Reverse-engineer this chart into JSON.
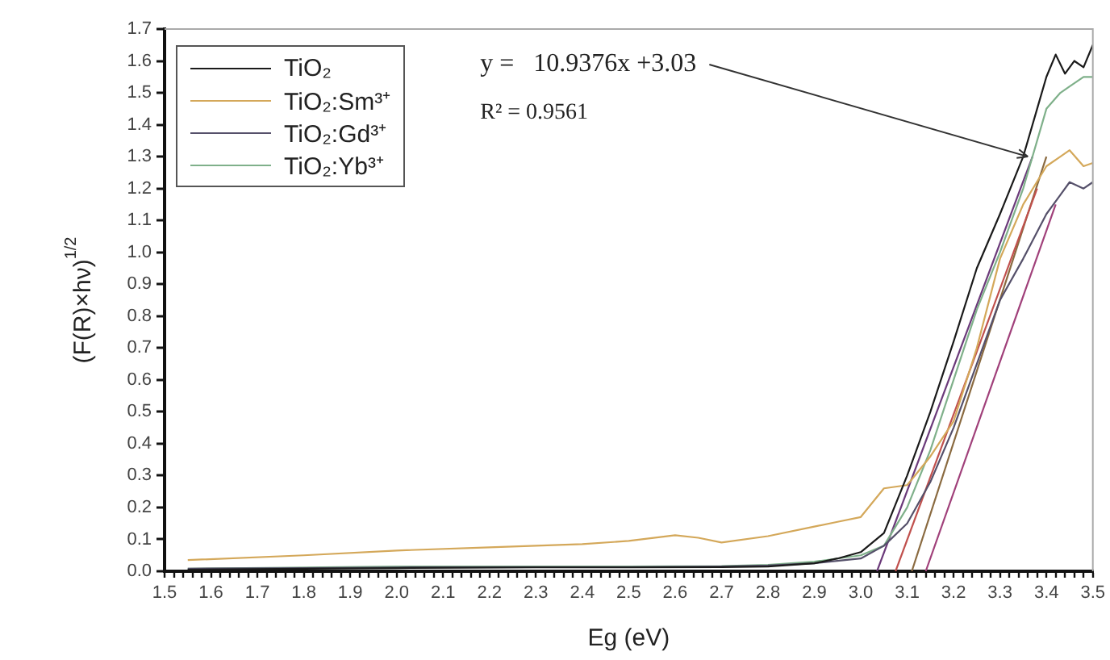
{
  "chart_data": {
    "type": "line",
    "xlabel": "Eg (eV)",
    "ylabel": "(F(R)×hν)$^{1/2}$",
    "xlim": [
      1.5,
      3.5
    ],
    "ylim": [
      0,
      1.7
    ],
    "xticks": [
      1.5,
      {
        "value": 1.52,
        "label": null
      },
      {
        "value": 1.54,
        "label": null
      },
      {
        "value": 1.56,
        "label": null
      },
      {
        "value": 1.58,
        "label": null
      },
      1.6,
      {
        "value": 1.62,
        "label": null
      },
      {
        "value": 1.64,
        "label": null
      },
      {
        "value": 1.66,
        "label": null
      },
      {
        "value": 1.68,
        "label": null
      },
      1.7,
      {
        "value": 1.72,
        "label": null
      },
      {
        "value": 1.74,
        "label": null
      },
      {
        "value": 1.76,
        "label": null
      },
      {
        "value": 1.78,
        "label": null
      },
      1.8,
      {
        "value": 1.82,
        "label": null
      },
      {
        "value": 1.84,
        "label": null
      },
      {
        "value": 1.86,
        "label": null
      },
      {
        "value": 1.88,
        "label": null
      },
      1.9,
      {
        "value": 1.92,
        "label": null
      },
      {
        "value": 1.94,
        "label": null
      },
      {
        "value": 1.96,
        "label": null
      },
      {
        "value": 1.98,
        "label": null
      },
      {
        "value": 2.0,
        "label": "2.0"
      },
      {
        "value": 2.02,
        "label": null
      },
      {
        "value": 2.04,
        "label": null
      },
      {
        "value": 2.06,
        "label": null
      },
      {
        "value": 2.08,
        "label": null
      },
      2.1,
      {
        "value": 2.12,
        "label": null
      },
      {
        "value": 2.14,
        "label": null
      },
      {
        "value": 2.16,
        "label": null
      },
      {
        "value": 2.18,
        "label": null
      },
      2.2,
      {
        "value": 2.22,
        "label": null
      },
      {
        "value": 2.24,
        "label": null
      },
      {
        "value": 2.26,
        "label": null
      },
      {
        "value": 2.28,
        "label": null
      },
      2.3,
      {
        "value": 2.32,
        "label": null
      },
      {
        "value": 2.34,
        "label": null
      },
      {
        "value": 2.36,
        "label": null
      },
      {
        "value": 2.38,
        "label": null
      },
      2.4,
      {
        "value": 2.42,
        "label": null
      },
      {
        "value": 2.44,
        "label": null
      },
      {
        "value": 2.46,
        "label": null
      },
      {
        "value": 2.48,
        "label": null
      },
      2.5,
      {
        "value": 2.52,
        "label": null
      },
      {
        "value": 2.54,
        "label": null
      },
      {
        "value": 2.56,
        "label": null
      },
      {
        "value": 2.58,
        "label": null
      },
      2.6,
      {
        "value": 2.62,
        "label": null
      },
      {
        "value": 2.64,
        "label": null
      },
      {
        "value": 2.66,
        "label": null
      },
      {
        "value": 2.68,
        "label": null
      },
      2.7,
      {
        "value": 2.72,
        "label": null
      },
      {
        "value": 2.74,
        "label": null
      },
      {
        "value": 2.76,
        "label": null
      },
      {
        "value": 2.78,
        "label": null
      },
      2.8,
      {
        "value": 2.82,
        "label": null
      },
      {
        "value": 2.84,
        "label": null
      },
      {
        "value": 2.86,
        "label": null
      },
      {
        "value": 2.88,
        "label": null
      },
      2.9,
      {
        "value": 2.92,
        "label": null
      },
      {
        "value": 2.94,
        "label": null
      },
      {
        "value": 2.96,
        "label": null
      },
      {
        "value": 2.98,
        "label": null
      },
      {
        "value": 3.0,
        "label": "3.0"
      },
      {
        "value": 3.02,
        "label": null
      },
      {
        "value": 3.04,
        "label": null
      },
      {
        "value": 3.06,
        "label": null
      },
      {
        "value": 3.08,
        "label": null
      },
      3.1,
      {
        "value": 3.12,
        "label": null
      },
      {
        "value": 3.14,
        "label": null
      },
      {
        "value": 3.16,
        "label": null
      },
      {
        "value": 3.18,
        "label": null
      },
      3.2,
      {
        "value": 3.22,
        "label": null
      },
      {
        "value": 3.24,
        "label": null
      },
      {
        "value": 3.26,
        "label": null
      },
      {
        "value": 3.28,
        "label": null
      },
      3.3,
      {
        "value": 3.32,
        "label": null
      },
      {
        "value": 3.34,
        "label": null
      },
      {
        "value": 3.36,
        "label": null
      },
      {
        "value": 3.38,
        "label": null
      },
      3.4,
      {
        "value": 3.42,
        "label": null
      },
      {
        "value": 3.44,
        "label": null
      },
      {
        "value": 3.46,
        "label": null
      },
      {
        "value": 3.48,
        "label": null
      },
      3.5
    ],
    "yticks": [
      {
        "value": 0,
        "label": "0.0"
      },
      0.1,
      0.2,
      0.3,
      0.4,
      0.5,
      0.6,
      0.7,
      0.8,
      0.9,
      {
        "value": 1,
        "label": "1.0"
      },
      1.1,
      1.2,
      1.3,
      1.4,
      1.5,
      1.6,
      1.7
    ],
    "grid": false,
    "legend": "top left",
    "marker": "none",
    "line_style": "solid",
    "annotations": [
      {
        "text": "y =   10.9376x +3.03",
        "x": 3.36,
        "y": 1.3
      },
      "R² = 0.9561"
    ],
    "series": [
      {
        "name": "TiO₂",
        "color": "#1a1a1a",
        "x": [
          1.55,
          1.8,
          2.0,
          2.3,
          2.5,
          2.7,
          2.8,
          2.9,
          2.95,
          3.0,
          3.05,
          3.1,
          3.15,
          3.2,
          3.25,
          3.3,
          3.35,
          3.38,
          3.4,
          3.42,
          3.44,
          3.46,
          3.48,
          3.5
        ],
        "values": [
          0.005,
          0.008,
          0.01,
          0.012,
          0.012,
          0.013,
          0.015,
          0.025,
          0.04,
          0.06,
          0.12,
          0.3,
          0.5,
          0.72,
          0.95,
          1.12,
          1.3,
          1.45,
          1.55,
          1.62,
          1.56,
          1.6,
          1.58,
          1.65
        ]
      },
      {
        "name": "TiO₂:Sm³⁺",
        "color": "#d4a85a",
        "x": [
          1.55,
          1.8,
          2.0,
          2.2,
          2.4,
          2.5,
          2.6,
          2.65,
          2.7,
          2.8,
          2.9,
          2.95,
          3.0,
          3.05,
          3.1,
          3.15,
          3.2,
          3.25,
          3.3,
          3.35,
          3.4,
          3.43,
          3.45,
          3.48,
          3.5
        ],
        "values": [
          0.035,
          0.05,
          0.065,
          0.075,
          0.085,
          0.095,
          0.113,
          0.105,
          0.09,
          0.11,
          0.14,
          0.155,
          0.17,
          0.26,
          0.27,
          0.36,
          0.47,
          0.7,
          0.98,
          1.15,
          1.27,
          1.3,
          1.32,
          1.27,
          1.28
        ]
      },
      {
        "name": "TiO₂:Gd³⁺",
        "color": "#55506a",
        "x": [
          1.55,
          1.8,
          2.0,
          2.3,
          2.5,
          2.7,
          2.8,
          2.9,
          3.0,
          3.05,
          3.1,
          3.15,
          3.2,
          3.25,
          3.3,
          3.35,
          3.4,
          3.43,
          3.45,
          3.48,
          3.5
        ],
        "values": [
          0.008,
          0.01,
          0.012,
          0.013,
          0.013,
          0.015,
          0.018,
          0.025,
          0.04,
          0.08,
          0.15,
          0.28,
          0.45,
          0.65,
          0.85,
          0.98,
          1.12,
          1.18,
          1.22,
          1.2,
          1.22
        ]
      },
      {
        "name": "TiO₂:Yb³⁺",
        "color": "#7fb08a",
        "x": [
          1.55,
          1.8,
          2.0,
          2.3,
          2.5,
          2.7,
          2.8,
          2.9,
          3.0,
          3.05,
          3.1,
          3.15,
          3.2,
          3.25,
          3.3,
          3.35,
          3.4,
          3.43,
          3.45,
          3.48,
          3.5
        ],
        "values": [
          0.008,
          0.012,
          0.015,
          0.015,
          0.015,
          0.016,
          0.02,
          0.03,
          0.05,
          0.08,
          0.2,
          0.38,
          0.6,
          0.82,
          1.0,
          1.2,
          1.45,
          1.5,
          1.52,
          1.55,
          1.55
        ]
      },
      {
        "type": "line",
        "color": "#6b3a7a",
        "x": [
          3.035,
          3.37
        ],
        "values": [
          0,
          1.3
        ]
      },
      {
        "type": "line",
        "color": "#c0504d",
        "x": [
          3.075,
          3.38
        ],
        "values": [
          0,
          1.2
        ]
      },
      {
        "type": "line",
        "color": "#8a6a40",
        "x": [
          3.11,
          3.4
        ],
        "values": [
          0,
          1.3
        ]
      },
      {
        "type": "line",
        "color": "#a0407a",
        "x": [
          3.14,
          3.42
        ],
        "values": [
          0,
          1.15
        ]
      }
    ]
  }
}
